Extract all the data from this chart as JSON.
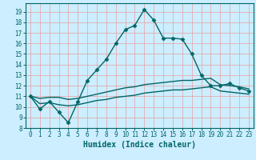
{
  "xlabel": "Humidex (Indice chaleur)",
  "bg_color": "#cceeff",
  "line_color": "#006666",
  "grid_color": "#e8a0a0",
  "xlim": [
    -0.5,
    23.5
  ],
  "ylim": [
    8,
    19.8
  ],
  "yticks": [
    8,
    9,
    10,
    11,
    12,
    13,
    14,
    15,
    16,
    17,
    18,
    19
  ],
  "xticks": [
    0,
    1,
    2,
    3,
    4,
    5,
    6,
    7,
    8,
    9,
    10,
    11,
    12,
    13,
    14,
    15,
    16,
    17,
    18,
    19,
    20,
    21,
    22,
    23
  ],
  "line1_x": [
    0,
    1,
    2,
    3,
    4,
    5,
    6,
    7,
    8,
    9,
    10,
    11,
    12,
    13,
    14,
    15,
    16,
    17,
    18,
    19,
    20,
    21,
    22,
    23
  ],
  "line1_y": [
    11.0,
    9.8,
    10.5,
    9.5,
    8.5,
    10.5,
    12.5,
    13.5,
    14.5,
    16.0,
    17.3,
    17.7,
    19.2,
    18.2,
    16.5,
    16.5,
    16.4,
    15.0,
    13.0,
    12.0,
    12.0,
    12.2,
    11.8,
    11.5
  ],
  "line2_x": [
    0,
    1,
    2,
    3,
    4,
    5,
    6,
    7,
    8,
    9,
    10,
    11,
    12,
    13,
    14,
    15,
    16,
    17,
    18,
    19,
    20,
    21,
    22,
    23
  ],
  "line2_y": [
    11.0,
    10.8,
    10.9,
    10.9,
    10.7,
    10.8,
    11.0,
    11.2,
    11.4,
    11.6,
    11.8,
    11.9,
    12.1,
    12.2,
    12.3,
    12.4,
    12.5,
    12.5,
    12.6,
    12.7,
    12.1,
    12.0,
    11.9,
    11.7
  ],
  "line3_x": [
    0,
    1,
    2,
    3,
    4,
    5,
    6,
    7,
    8,
    9,
    10,
    11,
    12,
    13,
    14,
    15,
    16,
    17,
    18,
    19,
    20,
    21,
    22,
    23
  ],
  "line3_y": [
    11.0,
    10.3,
    10.4,
    10.2,
    10.1,
    10.2,
    10.4,
    10.6,
    10.7,
    10.9,
    11.0,
    11.1,
    11.3,
    11.4,
    11.5,
    11.6,
    11.6,
    11.7,
    11.8,
    11.9,
    11.5,
    11.4,
    11.3,
    11.2
  ],
  "marker": "D",
  "markersize": 2.5,
  "linewidth": 1.0,
  "tick_fontsize": 5.5,
  "xlabel_fontsize": 7.0
}
